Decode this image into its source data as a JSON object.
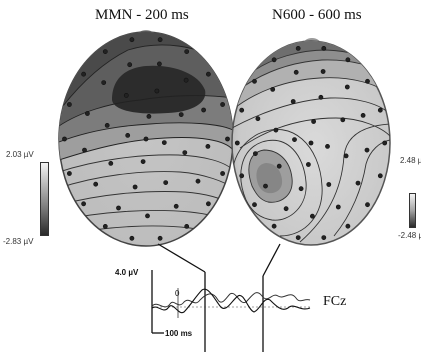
{
  "maps": {
    "left": {
      "title": "MMN - 200 ms",
      "scale_max": "2.03 µV",
      "scale_min": "-2.83 µV"
    },
    "right": {
      "title": "N600 - 600 ms",
      "scale_max": "2.48 µV",
      "scale_min": "-2.48 µV"
    }
  },
  "erp": {
    "amplitude_label": "4.0 µV",
    "time_label": "100 ms",
    "zero_label": "0",
    "channel": "FCz"
  }
}
